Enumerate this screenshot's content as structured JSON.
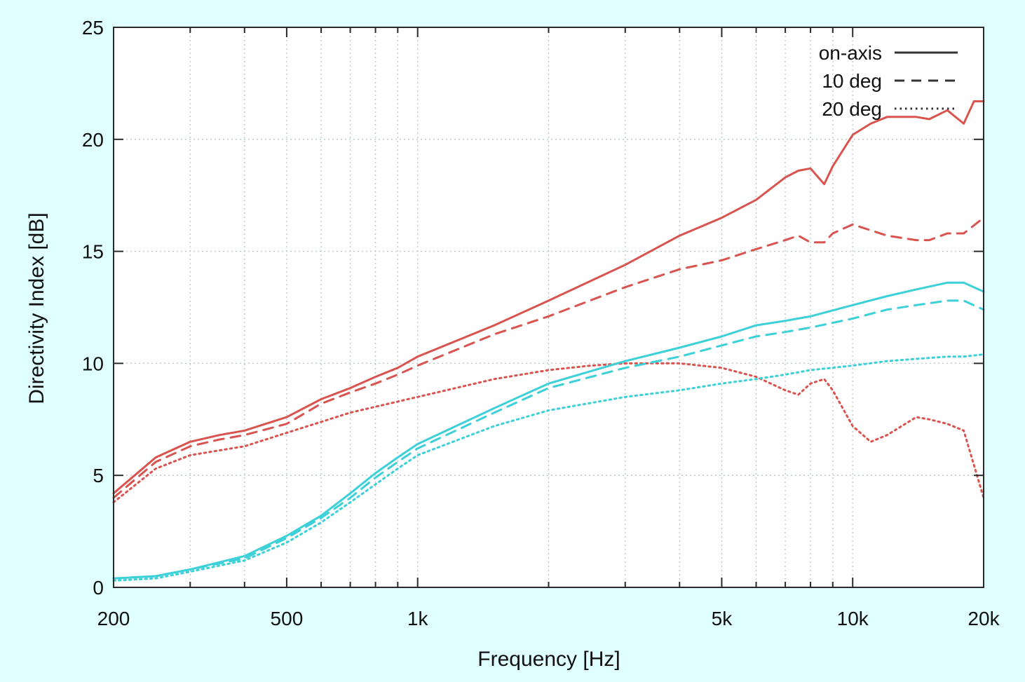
{
  "chart_data": {
    "type": "line",
    "title": "",
    "xlabel": "Frequency [Hz]",
    "ylabel": "Directivity Index [dB]",
    "x_scale": "log",
    "xlim": [
      200,
      20000
    ],
    "ylim": [
      0,
      25
    ],
    "grid": true,
    "legend_position": "top-right",
    "x_ticks": [
      {
        "value": 200,
        "label": "200"
      },
      {
        "value": 500,
        "label": "500"
      },
      {
        "value": 1000,
        "label": "1k"
      },
      {
        "value": 5000,
        "label": "5k"
      },
      {
        "value": 10000,
        "label": "10k"
      },
      {
        "value": 20000,
        "label": "20k"
      }
    ],
    "x_minor_grid": [
      300,
      400,
      600,
      700,
      800,
      900,
      2000,
      3000,
      4000,
      6000,
      7000,
      8000,
      9000
    ],
    "y_ticks": [
      {
        "value": 0,
        "label": "0"
      },
      {
        "value": 5,
        "label": "5"
      },
      {
        "value": 10,
        "label": "10"
      },
      {
        "value": 15,
        "label": "15"
      },
      {
        "value": 20,
        "label": "20"
      },
      {
        "value": 25,
        "label": "25"
      }
    ],
    "legend": [
      {
        "label": "on-axis",
        "dash": "solid"
      },
      {
        "label": "10 deg",
        "dash": "dashed"
      },
      {
        "label": "20 deg",
        "dash": "dotted"
      }
    ],
    "series": [
      {
        "color": "#d9534f",
        "dash": "solid",
        "points": [
          [
            200,
            4.2
          ],
          [
            250,
            5.8
          ],
          [
            300,
            6.5
          ],
          [
            350,
            6.8
          ],
          [
            400,
            7.0
          ],
          [
            500,
            7.6
          ],
          [
            600,
            8.4
          ],
          [
            700,
            8.9
          ],
          [
            800,
            9.4
          ],
          [
            900,
            9.8
          ],
          [
            1000,
            10.3
          ],
          [
            1500,
            11.7
          ],
          [
            2000,
            12.8
          ],
          [
            3000,
            14.4
          ],
          [
            4000,
            15.7
          ],
          [
            5000,
            16.5
          ],
          [
            6000,
            17.3
          ],
          [
            7000,
            18.3
          ],
          [
            7500,
            18.6
          ],
          [
            8000,
            18.7
          ],
          [
            8600,
            18.0
          ],
          [
            9000,
            18.8
          ],
          [
            10000,
            20.2
          ],
          [
            11000,
            20.7
          ],
          [
            12000,
            21.0
          ],
          [
            14000,
            21.0
          ],
          [
            15000,
            20.9
          ],
          [
            16500,
            21.3
          ],
          [
            18000,
            20.7
          ],
          [
            19000,
            21.7
          ],
          [
            20000,
            21.7
          ]
        ]
      },
      {
        "color": "#d9534f",
        "dash": "dashed",
        "points": [
          [
            200,
            4.0
          ],
          [
            250,
            5.6
          ],
          [
            300,
            6.3
          ],
          [
            350,
            6.6
          ],
          [
            400,
            6.8
          ],
          [
            500,
            7.3
          ],
          [
            600,
            8.2
          ],
          [
            700,
            8.7
          ],
          [
            800,
            9.1
          ],
          [
            900,
            9.5
          ],
          [
            1000,
            9.9
          ],
          [
            1500,
            11.3
          ],
          [
            2000,
            12.1
          ],
          [
            3000,
            13.4
          ],
          [
            4000,
            14.2
          ],
          [
            5000,
            14.6
          ],
          [
            6000,
            15.1
          ],
          [
            7000,
            15.5
          ],
          [
            7500,
            15.7
          ],
          [
            8000,
            15.4
          ],
          [
            8600,
            15.4
          ],
          [
            9000,
            15.8
          ],
          [
            10000,
            16.2
          ],
          [
            12000,
            15.7
          ],
          [
            14000,
            15.5
          ],
          [
            15000,
            15.5
          ],
          [
            16500,
            15.8
          ],
          [
            18000,
            15.8
          ],
          [
            20000,
            16.5
          ]
        ]
      },
      {
        "color": "#d9534f",
        "dash": "dotted",
        "points": [
          [
            200,
            3.8
          ],
          [
            250,
            5.3
          ],
          [
            300,
            5.9
          ],
          [
            400,
            6.3
          ],
          [
            500,
            6.9
          ],
          [
            700,
            7.8
          ],
          [
            1000,
            8.5
          ],
          [
            1500,
            9.3
          ],
          [
            2000,
            9.7
          ],
          [
            2500,
            9.9
          ],
          [
            3000,
            10.0
          ],
          [
            4000,
            10.0
          ],
          [
            5000,
            9.8
          ],
          [
            6000,
            9.4
          ],
          [
            7000,
            8.8
          ],
          [
            7500,
            8.6
          ],
          [
            8000,
            9.1
          ],
          [
            8600,
            9.3
          ],
          [
            9000,
            8.8
          ],
          [
            10000,
            7.2
          ],
          [
            11000,
            6.5
          ],
          [
            12000,
            6.8
          ],
          [
            14000,
            7.6
          ],
          [
            15000,
            7.5
          ],
          [
            16500,
            7.3
          ],
          [
            18000,
            7.0
          ],
          [
            20000,
            4.0
          ]
        ]
      },
      {
        "color": "#3cd0d8",
        "dash": "solid",
        "points": [
          [
            200,
            0.4
          ],
          [
            250,
            0.5
          ],
          [
            300,
            0.8
          ],
          [
            400,
            1.4
          ],
          [
            500,
            2.3
          ],
          [
            600,
            3.2
          ],
          [
            700,
            4.2
          ],
          [
            800,
            5.1
          ],
          [
            900,
            5.8
          ],
          [
            1000,
            6.4
          ],
          [
            1500,
            8.0
          ],
          [
            2000,
            9.1
          ],
          [
            3000,
            10.1
          ],
          [
            4000,
            10.7
          ],
          [
            5000,
            11.2
          ],
          [
            6000,
            11.7
          ],
          [
            7000,
            11.9
          ],
          [
            8000,
            12.1
          ],
          [
            10000,
            12.6
          ],
          [
            12000,
            13.0
          ],
          [
            14000,
            13.3
          ],
          [
            16500,
            13.6
          ],
          [
            18000,
            13.6
          ],
          [
            20000,
            13.2
          ]
        ]
      },
      {
        "color": "#3cd0d8",
        "dash": "dashed",
        "points": [
          [
            200,
            0.4
          ],
          [
            250,
            0.5
          ],
          [
            300,
            0.8
          ],
          [
            400,
            1.3
          ],
          [
            500,
            2.2
          ],
          [
            600,
            3.1
          ],
          [
            700,
            4.0
          ],
          [
            800,
            4.9
          ],
          [
            900,
            5.6
          ],
          [
            1000,
            6.2
          ],
          [
            1500,
            7.8
          ],
          [
            2000,
            8.9
          ],
          [
            3000,
            9.8
          ],
          [
            4000,
            10.3
          ],
          [
            5000,
            10.8
          ],
          [
            6000,
            11.2
          ],
          [
            7000,
            11.4
          ],
          [
            8000,
            11.6
          ],
          [
            10000,
            12.0
          ],
          [
            12000,
            12.4
          ],
          [
            14000,
            12.6
          ],
          [
            16500,
            12.8
          ],
          [
            18000,
            12.8
          ],
          [
            20000,
            12.4
          ]
        ]
      },
      {
        "color": "#3cd0d8",
        "dash": "dotted",
        "points": [
          [
            200,
            0.3
          ],
          [
            250,
            0.4
          ],
          [
            300,
            0.7
          ],
          [
            400,
            1.2
          ],
          [
            500,
            2.0
          ],
          [
            600,
            2.9
          ],
          [
            700,
            3.8
          ],
          [
            800,
            4.6
          ],
          [
            900,
            5.3
          ],
          [
            1000,
            5.9
          ],
          [
            1500,
            7.2
          ],
          [
            2000,
            7.9
          ],
          [
            3000,
            8.5
          ],
          [
            4000,
            8.8
          ],
          [
            5000,
            9.1
          ],
          [
            6000,
            9.3
          ],
          [
            7000,
            9.5
          ],
          [
            8000,
            9.7
          ],
          [
            10000,
            9.9
          ],
          [
            12000,
            10.1
          ],
          [
            14000,
            10.2
          ],
          [
            16500,
            10.3
          ],
          [
            18000,
            10.3
          ],
          [
            20000,
            10.4
          ]
        ]
      }
    ]
  }
}
